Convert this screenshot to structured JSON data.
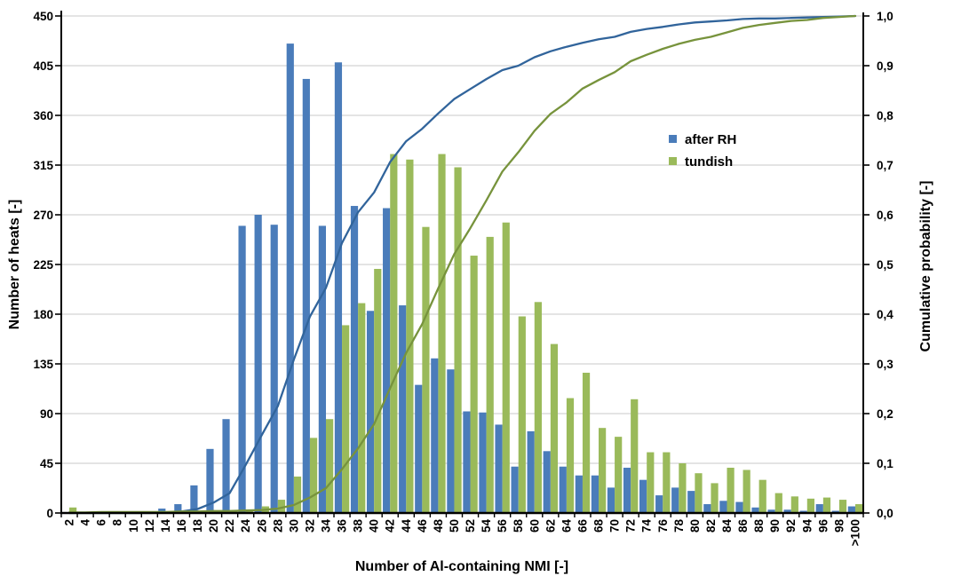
{
  "chart_data": {
    "type": "bar",
    "subtype": "grouped-histogram-with-cumulative-lines",
    "title": "",
    "xlabel": "Number of Al-containing  NMI [-]",
    "ylabel_left": "Number of heats [-]",
    "ylabel_right": "Cumulative  probability [-]",
    "x_categories": [
      "2",
      "4",
      "6",
      "8",
      "10",
      "12",
      "14",
      "16",
      "18",
      "20",
      "22",
      "24",
      "26",
      "28",
      "30",
      "32",
      "34",
      "36",
      "38",
      "40",
      "42",
      "44",
      "46",
      "48",
      "50",
      "52",
      "54",
      "56",
      "58",
      "60",
      "62",
      "64",
      "66",
      "68",
      "70",
      "72",
      "74",
      "76",
      "78",
      "80",
      "82",
      "84",
      "86",
      "88",
      "90",
      "92",
      "94",
      "96",
      "98",
      ">100"
    ],
    "y_left_ticks": [
      "0",
      "45",
      "90",
      "135",
      "180",
      "225",
      "270",
      "315",
      "360",
      "405",
      "450"
    ],
    "y_left_range": [
      0,
      450
    ],
    "y_right_ticks": [
      "0,0",
      "0,1",
      "0,2",
      "0,3",
      "0,4",
      "0,5",
      "0,6",
      "0,7",
      "0,8",
      "0,9",
      "1,0"
    ],
    "y_right_range": [
      0,
      1
    ],
    "grid": true,
    "legend_position": "inside-upper-right",
    "series": [
      {
        "name": "after RH",
        "type": "bar",
        "axis": "left",
        "color": "#4A7CBA",
        "values": [
          0,
          0,
          0,
          0,
          0,
          0,
          4,
          8,
          25,
          58,
          85,
          260,
          270,
          261,
          425,
          393,
          260,
          408,
          278,
          183,
          276,
          188,
          116,
          140,
          130,
          92,
          91,
          80,
          42,
          74,
          56,
          42,
          34,
          34,
          23,
          41,
          30,
          16,
          23,
          20,
          8,
          11,
          10,
          5,
          3,
          3,
          2,
          8,
          2,
          6
        ]
      },
      {
        "name": "tundish",
        "type": "bar",
        "axis": "left",
        "color": "#9ABA5A",
        "values": [
          5,
          1,
          1,
          1,
          1,
          1,
          1,
          1,
          2,
          2,
          2,
          3,
          6,
          12,
          33,
          68,
          85,
          170,
          190,
          221,
          325,
          320,
          259,
          325,
          313,
          233,
          250,
          263,
          178,
          191,
          153,
          104,
          127,
          77,
          69,
          103,
          55,
          55,
          45,
          36,
          27,
          41,
          39,
          30,
          18,
          15,
          13,
          14,
          12,
          8
        ]
      },
      {
        "name": "after RH cumulative",
        "type": "line",
        "axis": "right",
        "color": "#31649B",
        "values": [
          0,
          0,
          0,
          0,
          0,
          0,
          0.001,
          0.003,
          0.008,
          0.021,
          0.04,
          0.097,
          0.157,
          0.215,
          0.309,
          0.395,
          0.453,
          0.543,
          0.605,
          0.645,
          0.706,
          0.748,
          0.773,
          0.804,
          0.833,
          0.853,
          0.873,
          0.891,
          0.9,
          0.917,
          0.929,
          0.938,
          0.946,
          0.953,
          0.958,
          0.968,
          0.974,
          0.978,
          0.983,
          0.987,
          0.989,
          0.991,
          0.994,
          0.995,
          0.995,
          0.996,
          0.997,
          0.998,
          0.999,
          1
        ]
      },
      {
        "name": "tundish cumulative",
        "type": "line",
        "axis": "right",
        "color": "#77933C",
        "values": [
          0.001,
          0.001,
          0.002,
          0.002,
          0.002,
          0.002,
          0.002,
          0.003,
          0.003,
          0.004,
          0.004,
          0.005,
          0.006,
          0.009,
          0.016,
          0.031,
          0.05,
          0.088,
          0.13,
          0.179,
          0.251,
          0.322,
          0.38,
          0.452,
          0.521,
          0.573,
          0.629,
          0.687,
          0.726,
          0.769,
          0.803,
          0.826,
          0.854,
          0.871,
          0.887,
          0.909,
          0.922,
          0.934,
          0.944,
          0.952,
          0.958,
          0.967,
          0.976,
          0.982,
          0.986,
          0.99,
          0.992,
          0.996,
          0.998,
          1
        ]
      }
    ],
    "legend": [
      {
        "label": "after RH",
        "color": "#4A7CBA"
      },
      {
        "label": "tundish",
        "color": "#9ABA5A"
      }
    ],
    "colors": {
      "grid": "#C9C9C9",
      "axis": "#000000",
      "background": "#FFFFFF"
    }
  }
}
